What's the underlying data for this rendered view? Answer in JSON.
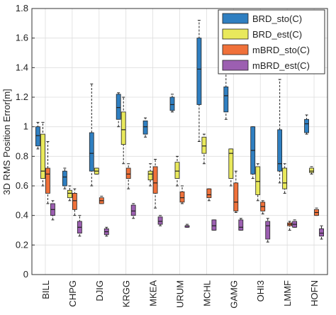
{
  "chart_data": {
    "type": "box",
    "ylabel": "3D RMS Position Error[m]",
    "categories": [
      "BILL",
      "CHPG",
      "DJIG",
      "KRGG",
      "MKEA",
      "URUM",
      "MCHL",
      "GAMG",
      "OHI3",
      "LMMF",
      "HOFN"
    ],
    "ylim": [
      0,
      1.8
    ],
    "yticks": [
      0,
      0.2,
      0.4,
      0.6,
      0.8,
      1,
      1.2,
      1.4,
      1.6,
      1.8
    ],
    "grid": true,
    "legend": "upper right",
    "series": [
      {
        "name": "BRD_sto(C)",
        "color": "#2f7fc1",
        "values": [
          [
            0.85,
            0.87,
            0.94,
            1.0,
            1.03
          ],
          [
            0.58,
            0.6,
            0.66,
            0.7,
            0.72
          ],
          [
            0.6,
            0.7,
            0.82,
            0.96,
            1.29
          ],
          [
            1.0,
            1.05,
            1.13,
            1.22,
            1.23
          ],
          [
            0.93,
            0.95,
            1.0,
            1.04,
            1.06
          ],
          [
            1.1,
            1.11,
            1.15,
            1.2,
            1.22
          ],
          [
            0.9,
            1.15,
            1.39,
            1.6,
            1.72
          ],
          [
            1.05,
            1.1,
            1.21,
            1.27,
            1.37
          ],
          [
            0.65,
            0.68,
            0.84,
            1.0,
            1.0
          ],
          [
            0.62,
            0.7,
            0.75,
            0.98,
            1.32
          ],
          [
            0.95,
            0.96,
            1.02,
            1.05,
            1.08
          ]
        ]
      },
      {
        "name": "BRD_est(C)",
        "color": "#e9e95c",
        "values": [
          [
            0.6,
            0.65,
            0.7,
            0.95,
            1.03
          ],
          [
            0.5,
            0.52,
            0.55,
            0.57,
            0.6
          ],
          [
            0.68,
            0.68,
            0.7,
            0.72,
            0.72
          ],
          [
            0.75,
            0.88,
            0.98,
            1.1,
            1.2
          ],
          [
            0.6,
            0.64,
            0.68,
            0.7,
            0.75
          ],
          [
            0.6,
            0.65,
            0.7,
            0.76,
            0.8
          ],
          [
            0.75,
            0.82,
            0.87,
            0.93,
            0.95
          ],
          [
            0.6,
            0.65,
            0.82,
            0.85,
            0.85
          ],
          [
            0.5,
            0.54,
            0.63,
            0.73,
            0.75
          ],
          [
            0.55,
            0.58,
            0.62,
            0.72,
            0.75
          ],
          [
            0.68,
            0.69,
            0.7,
            0.72,
            0.73
          ]
        ]
      },
      {
        "name": "mBRD_sto(C)",
        "color": "#f0713a",
        "values": [
          [
            0.48,
            0.55,
            0.68,
            0.72,
            0.9
          ],
          [
            0.4,
            0.44,
            0.5,
            0.55,
            0.58
          ],
          [
            0.48,
            0.48,
            0.5,
            0.52,
            0.53
          ],
          [
            0.58,
            0.65,
            0.68,
            0.72,
            0.75
          ],
          [
            0.45,
            0.55,
            0.62,
            0.73,
            0.78
          ],
          [
            0.48,
            0.49,
            0.52,
            0.56,
            0.6
          ],
          [
            0.5,
            0.52,
            0.54,
            0.58,
            0.58
          ],
          [
            0.42,
            0.43,
            0.49,
            0.62,
            0.7
          ],
          [
            0.41,
            0.43,
            0.46,
            0.49,
            0.5
          ],
          [
            0.3,
            0.33,
            0.34,
            0.35,
            0.36
          ],
          [
            0.4,
            0.4,
            0.42,
            0.44,
            0.45
          ]
        ]
      },
      {
        "name": "mBRD_est(C)",
        "color": "#9c5fb1",
        "values": [
          [
            0.37,
            0.4,
            0.44,
            0.48,
            0.5
          ],
          [
            0.26,
            0.28,
            0.32,
            0.36,
            0.4
          ],
          [
            0.26,
            0.27,
            0.29,
            0.31,
            0.32
          ],
          [
            0.38,
            0.4,
            0.43,
            0.47,
            0.48
          ],
          [
            0.33,
            0.34,
            0.36,
            0.39,
            0.4
          ],
          [
            0.32,
            0.32,
            0.33,
            0.33,
            0.34
          ],
          [
            0.3,
            0.3,
            0.33,
            0.37,
            0.37
          ],
          [
            0.3,
            0.3,
            0.32,
            0.37,
            0.38
          ],
          [
            0.22,
            0.24,
            0.33,
            0.36,
            0.38
          ],
          [
            0.32,
            0.32,
            0.34,
            0.36,
            0.37
          ],
          [
            0.24,
            0.26,
            0.28,
            0.31,
            0.33
          ]
        ]
      }
    ]
  }
}
